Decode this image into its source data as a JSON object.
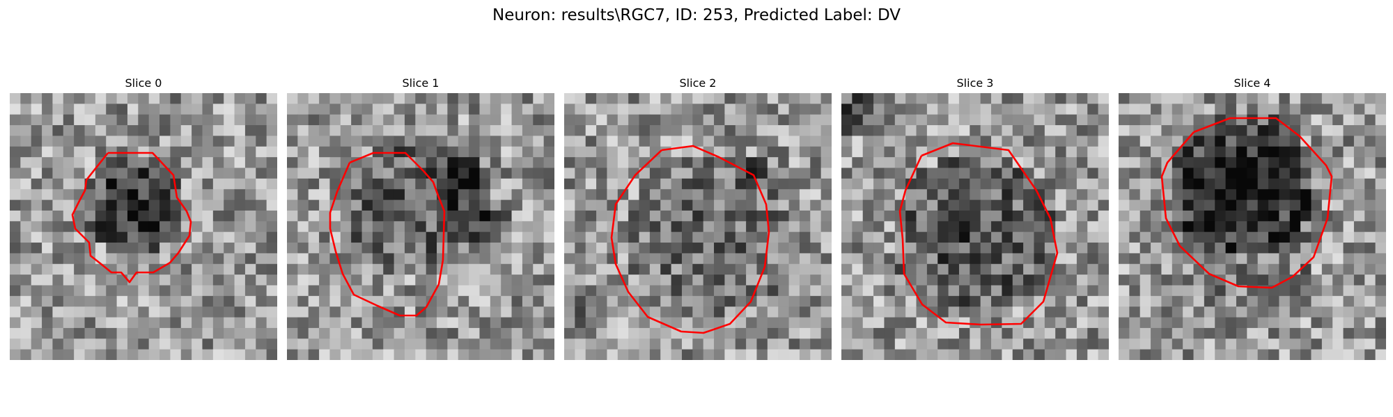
{
  "figure": {
    "title": "Neuron: results\\RGC7, ID: 253, Predicted Label: DV"
  },
  "slices": [
    {
      "title": "Slice 0"
    },
    {
      "title": "Slice 1"
    },
    {
      "title": "Slice 2"
    },
    {
      "title": "Slice 3"
    },
    {
      "title": "Slice 4"
    }
  ],
  "colors": {
    "contour": "#ff0000",
    "background": "#ffffff"
  },
  "colormap": "gray"
}
